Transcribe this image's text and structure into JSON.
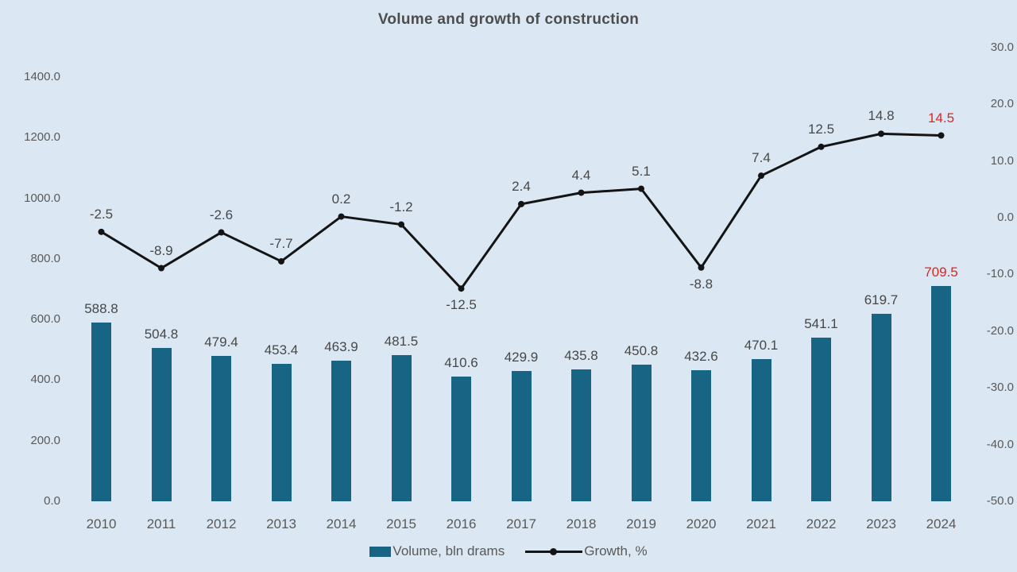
{
  "title": "Volume and growth of construction",
  "colors": {
    "background": "#dbe8f4",
    "bar": "#176484",
    "line": "#141414",
    "axis_text": "#595959",
    "label_text": "#474747",
    "title_text": "#4d4d4d",
    "highlight": "#e2231c"
  },
  "legend": {
    "bar_label": "Volume, bln drams",
    "line_label": "Growth, %"
  },
  "chart_data": {
    "type": "bar",
    "subtype": "bar+line combo, dual axis",
    "title": "Volume and growth of construction",
    "categories": [
      "2010",
      "2011",
      "2012",
      "2013",
      "2014",
      "2015",
      "2016",
      "2017",
      "2018",
      "2019",
      "2020",
      "2021",
      "2022",
      "2023",
      "2024"
    ],
    "series": [
      {
        "name": "Volume, bln drams",
        "type": "bar",
        "axis": "left",
        "values": [
          588.8,
          504.8,
          479.4,
          453.4,
          463.9,
          481.5,
          410.6,
          429.9,
          435.8,
          450.8,
          432.6,
          470.1,
          541.1,
          619.7,
          709.5
        ],
        "highlight_index": 14
      },
      {
        "name": "Growth, %",
        "type": "line",
        "axis": "right",
        "values": [
          -2.5,
          -8.9,
          -2.6,
          -7.7,
          0.2,
          -1.2,
          -12.5,
          2.4,
          4.4,
          5.1,
          -8.8,
          7.4,
          12.5,
          14.8,
          14.5
        ],
        "highlight_index": 14,
        "label_below_indices": [
          6,
          10
        ]
      }
    ],
    "left_axis": {
      "min": 0,
      "max": 1400,
      "ticks": [
        1400,
        1200,
        1000,
        800,
        600,
        400,
        200,
        0
      ],
      "tick_format": "one_decimal"
    },
    "right_axis": {
      "min": -50,
      "max": 30,
      "ticks": [
        30,
        20,
        10,
        0,
        -10,
        -20,
        -30,
        -40,
        -50
      ],
      "tick_format": "one_decimal"
    },
    "grid": false,
    "legend_position": "bottom",
    "data_labels": true
  }
}
